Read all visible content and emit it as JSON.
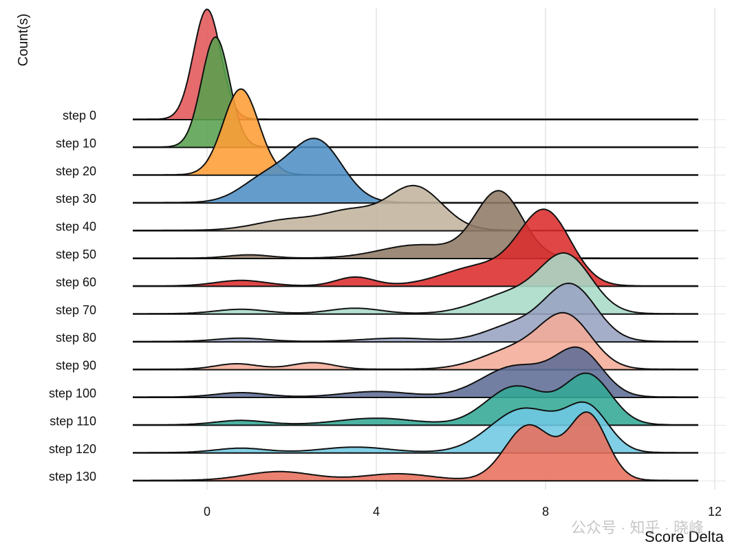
{
  "chart_data": {
    "type": "ridgeline",
    "ylabel": "Count(s)",
    "xlabel": "Score Delta",
    "xlim": [
      -2,
      12
    ],
    "xticks": [
      0,
      4,
      8,
      12
    ],
    "grid": true,
    "categories": [
      "step 0",
      "step 10",
      "step 20",
      "step 30",
      "step 40",
      "step 50",
      "step 60",
      "step 70",
      "step 80",
      "step 90",
      "step 100",
      "step 110",
      "step 120",
      "step 130"
    ],
    "series": [
      {
        "name": "step 0",
        "color": "#e15759",
        "peaks": [
          [
            0.0,
            0.32,
            1.0
          ]
        ]
      },
      {
        "name": "step 10",
        "color": "#59a14f",
        "peaks": [
          [
            0.2,
            0.33,
            1.0
          ]
        ]
      },
      {
        "name": "step 20",
        "color": "#ff9d36",
        "peaks": [
          [
            0.8,
            0.42,
            0.78
          ]
        ]
      },
      {
        "name": "step 30",
        "color": "#4e8fc4",
        "peaks": [
          [
            1.4,
            0.6,
            0.22
          ],
          [
            2.6,
            0.6,
            0.55
          ]
        ]
      },
      {
        "name": "step 40",
        "color": "#c2b49e",
        "peaks": [
          [
            2.0,
            0.8,
            0.1
          ],
          [
            3.4,
            0.6,
            0.15
          ],
          [
            4.9,
            0.65,
            0.4
          ]
        ]
      },
      {
        "name": "step 50",
        "color": "#8f7a67",
        "peaks": [
          [
            1.0,
            0.5,
            0.03
          ],
          [
            5.0,
            0.9,
            0.12
          ],
          [
            6.9,
            0.55,
            0.6
          ]
        ]
      },
      {
        "name": "step 60",
        "color": "#dc2c2c",
        "peaks": [
          [
            0.8,
            0.6,
            0.05
          ],
          [
            3.5,
            0.45,
            0.08
          ],
          [
            6.5,
            0.9,
            0.18
          ],
          [
            8.0,
            0.6,
            0.65
          ]
        ]
      },
      {
        "name": "step 70",
        "color": "#a8dbc8",
        "peaks": [
          [
            0.8,
            0.6,
            0.04
          ],
          [
            3.5,
            0.6,
            0.05
          ],
          [
            7.2,
            0.8,
            0.18
          ],
          [
            8.5,
            0.6,
            0.5
          ]
        ]
      },
      {
        "name": "step 80",
        "color": "#98a3c2",
        "peaks": [
          [
            0.8,
            0.6,
            0.03
          ],
          [
            4.5,
            0.8,
            0.03
          ],
          [
            7.3,
            0.7,
            0.15
          ],
          [
            8.6,
            0.6,
            0.5
          ]
        ]
      },
      {
        "name": "step 90",
        "color": "#f4ac98",
        "peaks": [
          [
            0.7,
            0.5,
            0.05
          ],
          [
            2.5,
            0.5,
            0.06
          ],
          [
            7.3,
            0.8,
            0.18
          ],
          [
            8.5,
            0.6,
            0.45
          ]
        ]
      },
      {
        "name": "step 100",
        "color": "#5f6d96",
        "peaks": [
          [
            0.8,
            0.6,
            0.04
          ],
          [
            4.0,
            0.8,
            0.05
          ],
          [
            7.3,
            0.8,
            0.28
          ],
          [
            8.8,
            0.55,
            0.4
          ]
        ]
      },
      {
        "name": "step 110",
        "color": "#33a895",
        "peaks": [
          [
            0.8,
            0.6,
            0.04
          ],
          [
            4.0,
            0.9,
            0.06
          ],
          [
            7.3,
            0.7,
            0.35
          ],
          [
            9.0,
            0.55,
            0.45
          ]
        ]
      },
      {
        "name": "step 120",
        "color": "#6fc8e2",
        "peaks": [
          [
            0.8,
            0.6,
            0.04
          ],
          [
            3.5,
            0.8,
            0.05
          ],
          [
            7.5,
            0.8,
            0.4
          ],
          [
            9.0,
            0.5,
            0.38
          ]
        ]
      },
      {
        "name": "step 130",
        "color": "#e8705c",
        "peaks": [
          [
            1.7,
            0.8,
            0.08
          ],
          [
            4.5,
            0.8,
            0.06
          ],
          [
            7.6,
            0.55,
            0.5
          ],
          [
            9.0,
            0.45,
            0.6
          ]
        ]
      }
    ]
  },
  "watermark": "公众号 · 知乎 · 晓峰"
}
